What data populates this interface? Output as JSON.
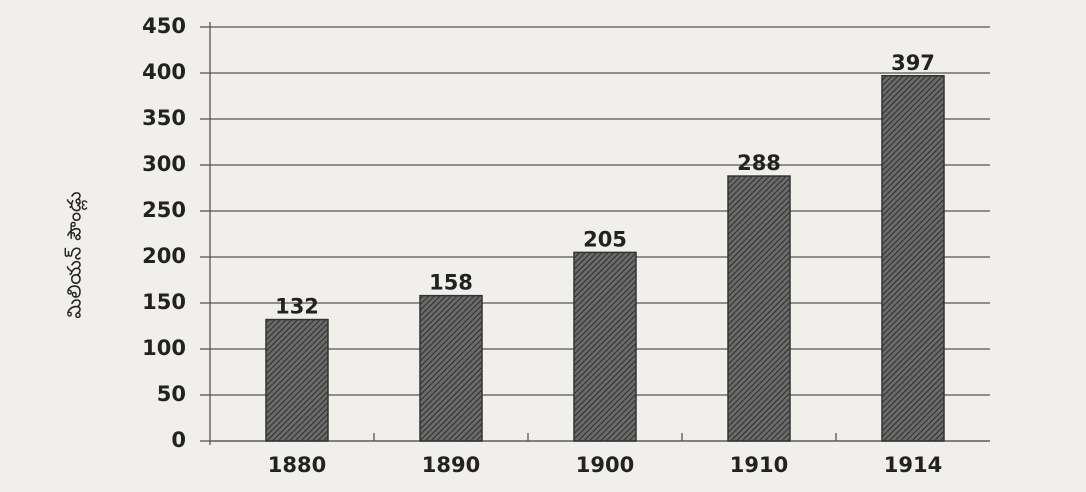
{
  "chart_data": {
    "type": "bar",
    "y_label": "మిలియన్ పౌండ్లు",
    "categories": [
      "1880",
      "1890",
      "1900",
      "1910",
      "1914"
    ],
    "values": [
      132,
      158,
      205,
      288,
      397
    ],
    "color": "#555555",
    "ylim": [
      0,
      450
    ],
    "yticks": [
      0,
      50,
      100,
      150,
      200,
      250,
      300,
      350,
      400,
      450
    ],
    "grid": true
  }
}
